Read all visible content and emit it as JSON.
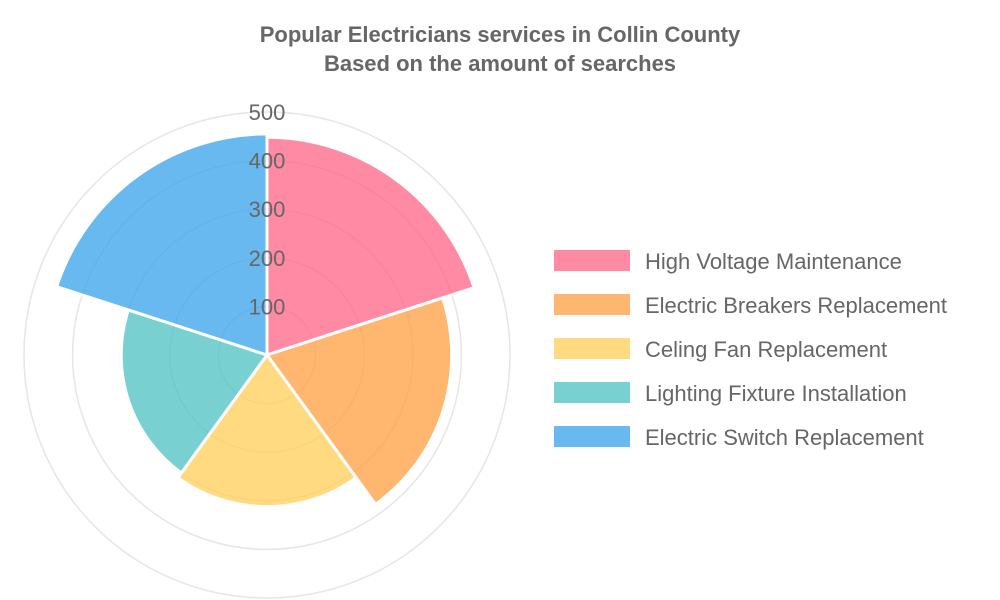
{
  "chart_data": {
    "type": "polarArea",
    "title": [
      "Popular Electricians services in Collin County",
      "Based on the amount of searches"
    ],
    "categories": [
      "High Voltage Maintenance",
      "Electric Breakers Replacement",
      "Celing Fan Replacement",
      "Lighting Fixture Installation",
      "Electric Switch Replacement"
    ],
    "values": [
      448,
      380,
      312,
      300,
      455
    ],
    "colors": [
      "#ff6384",
      "#ff9f40",
      "#ffcd56",
      "#4bc0c0",
      "#36a2eb"
    ],
    "segment_opacity": 0.75,
    "r_range": [
      0,
      500
    ],
    "r_ticks": [
      100,
      200,
      300,
      400,
      500
    ],
    "grid": true,
    "legend_position": "right"
  }
}
